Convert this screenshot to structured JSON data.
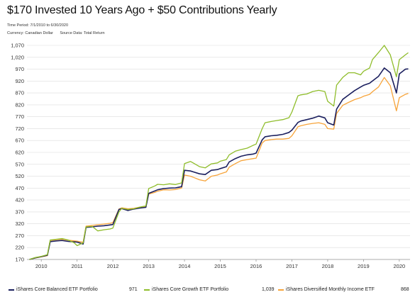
{
  "header": {
    "title": "$170 Invested 10 Years Ago + $50 Contributions Yearly",
    "time_period": "Time Period: 7/1/2010 to 6/30/2020",
    "currency": "Currency: Canadian Dollar",
    "source": "Source Data: Total Return"
  },
  "colors": {
    "balanced": "#1b1f5e",
    "growth": "#8fbd2b",
    "income": "#f7a43a"
  },
  "chart_data": {
    "type": "line",
    "title": "$170 Invested 10 Years Ago + $50 Contributions Yearly",
    "xlabel": "",
    "ylabel": "",
    "ylim": [
      170,
      1070
    ],
    "xlim": [
      2009.6,
      2020.3
    ],
    "y_ticks": [
      "170",
      "220",
      "270",
      "320",
      "370",
      "420",
      "470",
      "520",
      "570",
      "620",
      "670",
      "720",
      "770",
      "820",
      "870",
      "920",
      "970",
      "1,020",
      "1,070"
    ],
    "x_ticks": [
      "2010",
      "2011",
      "2012",
      "2013",
      "2014",
      "2015",
      "2016",
      "2017",
      "2018",
      "2019",
      "2020"
    ],
    "grid": true,
    "legend_position": "bottom",
    "series": [
      {
        "name": "iShares Core Balanced ETF Portfolio",
        "end_value": "971",
        "color": "#1b1f5e",
        "x": [
          2009.67,
          2009.83,
          2010.0,
          2010.17,
          2010.25,
          2010.42,
          2010.58,
          2010.75,
          2010.92,
          2011.0,
          2011.17,
          2011.25,
          2011.42,
          2011.58,
          2011.75,
          2011.92,
          2012.0,
          2012.17,
          2012.25,
          2012.42,
          2012.58,
          2012.75,
          2012.92,
          2013.0,
          2013.17,
          2013.25,
          2013.42,
          2013.58,
          2013.75,
          2013.92,
          2014.0,
          2014.17,
          2014.25,
          2014.42,
          2014.58,
          2014.75,
          2014.92,
          2015.0,
          2015.17,
          2015.25,
          2015.42,
          2015.58,
          2015.75,
          2015.92,
          2016.0,
          2016.17,
          2016.25,
          2016.42,
          2016.58,
          2016.75,
          2016.92,
          2017.0,
          2017.17,
          2017.25,
          2017.42,
          2017.58,
          2017.75,
          2017.92,
          2018.0,
          2018.17,
          2018.25,
          2018.42,
          2018.58,
          2018.75,
          2018.92,
          2019.0,
          2019.17,
          2019.25,
          2019.42,
          2019.58,
          2019.75,
          2019.92,
          2020.0,
          2020.17,
          2020.25
        ],
        "y": [
          170,
          177,
          182,
          188,
          245,
          248,
          250,
          246,
          244,
          243,
          235,
          305,
          307,
          310,
          312,
          315,
          317,
          380,
          384,
          376,
          382,
          386,
          389,
          448,
          458,
          463,
          468,
          470,
          471,
          476,
          545,
          542,
          538,
          530,
          527,
          545,
          548,
          552,
          560,
          580,
          594,
          604,
          610,
          613,
          617,
          673,
          686,
          690,
          692,
          696,
          704,
          714,
          746,
          752,
          758,
          764,
          773,
          765,
          745,
          735,
          802,
          843,
          861,
          880,
          895,
          902,
          911,
          920,
          940,
          975,
          955,
          870,
          950,
          970,
          971
        ]
      },
      {
        "name": "iShares Core Growth ETF Portfolio",
        "end_value": "1,039",
        "color": "#8fbd2b",
        "x": [
          2009.67,
          2009.83,
          2010.0,
          2010.17,
          2010.25,
          2010.42,
          2010.58,
          2010.75,
          2010.92,
          2011.0,
          2011.17,
          2011.25,
          2011.42,
          2011.58,
          2011.75,
          2011.92,
          2012.0,
          2012.17,
          2012.25,
          2012.42,
          2012.58,
          2012.75,
          2012.92,
          2013.0,
          2013.17,
          2013.25,
          2013.42,
          2013.58,
          2013.75,
          2013.92,
          2014.0,
          2014.17,
          2014.25,
          2014.42,
          2014.58,
          2014.75,
          2014.92,
          2015.0,
          2015.17,
          2015.25,
          2015.42,
          2015.58,
          2015.75,
          2015.92,
          2016.0,
          2016.17,
          2016.25,
          2016.42,
          2016.58,
          2016.75,
          2016.92,
          2017.0,
          2017.17,
          2017.25,
          2017.42,
          2017.58,
          2017.75,
          2017.92,
          2018.0,
          2018.17,
          2018.25,
          2018.42,
          2018.58,
          2018.75,
          2018.92,
          2019.0,
          2019.17,
          2019.25,
          2019.42,
          2019.58,
          2019.75,
          2019.92,
          2020.0,
          2020.17,
          2020.25
        ],
        "y": [
          170,
          178,
          183,
          190,
          252,
          255,
          258,
          252,
          240,
          228,
          240,
          307,
          309,
          290,
          295,
          298,
          302,
          370,
          385,
          380,
          383,
          390,
          395,
          468,
          479,
          486,
          484,
          488,
          485,
          492,
          573,
          582,
          575,
          560,
          555,
          572,
          576,
          583,
          590,
          610,
          625,
          632,
          638,
          650,
          655,
          720,
          745,
          750,
          754,
          758,
          766,
          790,
          858,
          862,
          866,
          876,
          881,
          876,
          835,
          815,
          903,
          935,
          955,
          955,
          946,
          961,
          975,
          1010,
          1040,
          1070,
          1030,
          938,
          1010,
          1030,
          1039
        ]
      },
      {
        "name": "iShares Diversified Monthly Income ETF",
        "end_value": "868",
        "color": "#f7a43a",
        "x": [
          2009.67,
          2009.83,
          2010.0,
          2010.17,
          2010.25,
          2010.42,
          2010.58,
          2010.75,
          2010.92,
          2011.0,
          2011.17,
          2011.25,
          2011.42,
          2011.58,
          2011.75,
          2011.92,
          2012.0,
          2012.17,
          2012.25,
          2012.42,
          2012.58,
          2012.75,
          2012.92,
          2013.0,
          2013.17,
          2013.25,
          2013.42,
          2013.58,
          2013.75,
          2013.92,
          2014.0,
          2014.17,
          2014.25,
          2014.42,
          2014.58,
          2014.75,
          2014.92,
          2015.0,
          2015.17,
          2015.25,
          2015.42,
          2015.58,
          2015.75,
          2015.92,
          2016.0,
          2016.17,
          2016.25,
          2016.42,
          2016.58,
          2016.75,
          2016.92,
          2017.0,
          2017.17,
          2017.25,
          2017.42,
          2017.58,
          2017.75,
          2017.92,
          2018.0,
          2018.17,
          2018.25,
          2018.42,
          2018.58,
          2018.75,
          2018.92,
          2019.0,
          2019.17,
          2019.25,
          2019.42,
          2019.58,
          2019.75,
          2019.92,
          2020.0,
          2020.17,
          2020.25
        ],
        "y": [
          170,
          176,
          181,
          186,
          250,
          253,
          255,
          251,
          248,
          247,
          242,
          310,
          313,
          316,
          319,
          322,
          325,
          382,
          387,
          383,
          385,
          390,
          390,
          445,
          452,
          457,
          463,
          462,
          464,
          470,
          525,
          520,
          515,
          505,
          500,
          520,
          525,
          530,
          538,
          558,
          573,
          585,
          590,
          594,
          596,
          660,
          670,
          674,
          676,
          676,
          679,
          690,
          728,
          732,
          738,
          742,
          745,
          738,
          720,
          718,
          784,
          818,
          830,
          842,
          850,
          856,
          864,
          875,
          895,
          935,
          900,
          795,
          850,
          864,
          868
        ]
      }
    ]
  }
}
